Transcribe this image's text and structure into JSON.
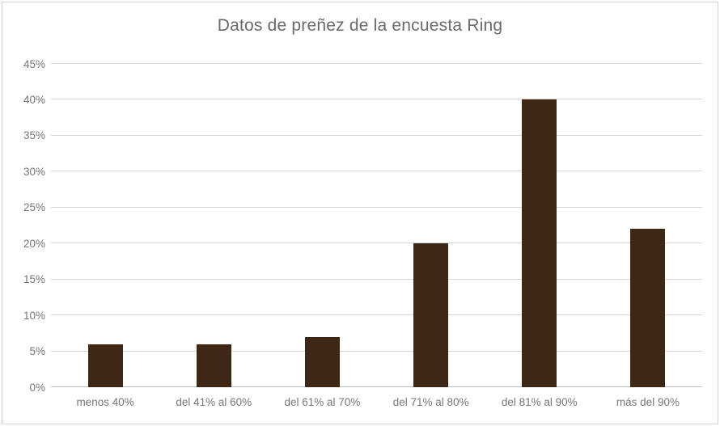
{
  "chart_data": {
    "type": "bar",
    "title": "Datos de preñez de la encuesta Ring",
    "categories": [
      "menos 40%",
      "del 41% al 60%",
      "del 61% al 70%",
      "del 71% al 80%",
      "del 81% al 90%",
      "más del 90%"
    ],
    "values": [
      6,
      6,
      7,
      20,
      40,
      22
    ],
    "xlabel": "",
    "ylabel": "",
    "ylim": [
      0,
      45
    ],
    "ytick_step": 5,
    "ytick_suffix": "%",
    "grid": true,
    "legend": false,
    "bar_color": "#3F2716",
    "colors": {
      "title": "#6E6868",
      "tick_labels": "#7B7575",
      "gridline": "#D9D5D5",
      "axis_line": "#C8C4C4",
      "border": "#D7D3D3",
      "background": "#FFFFFF"
    }
  }
}
